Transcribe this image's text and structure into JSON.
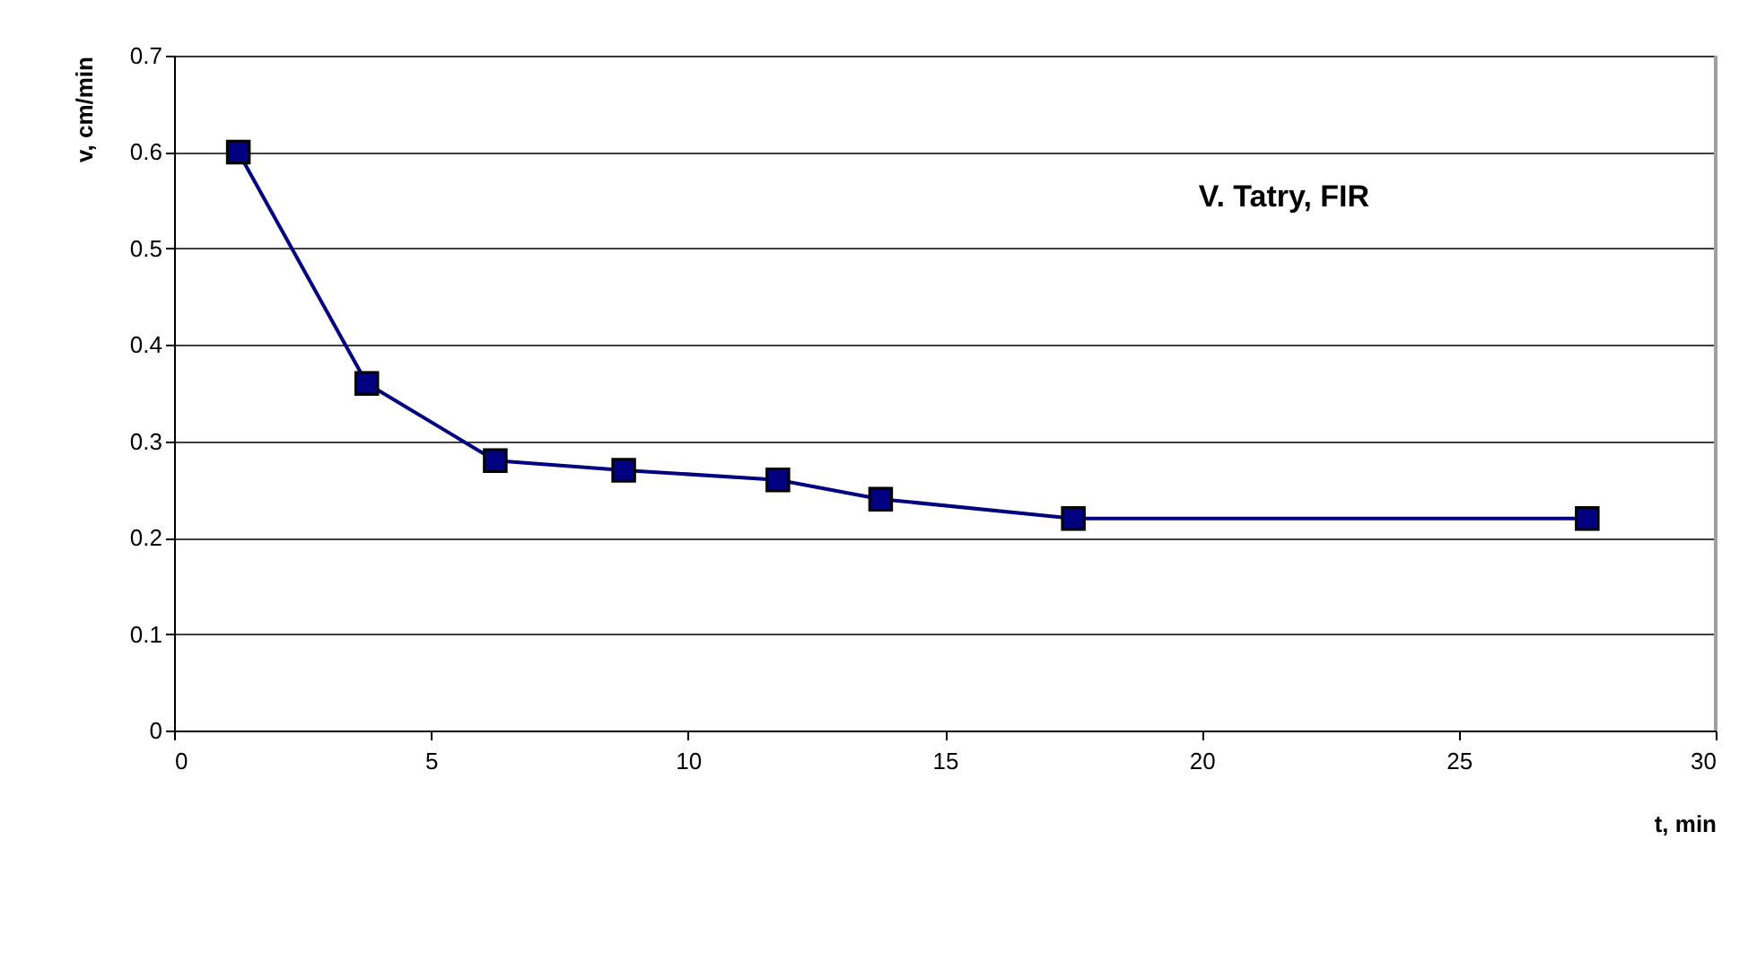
{
  "chart_data": {
    "type": "line",
    "xlabel": "t, min",
    "ylabel": "v, cm/min",
    "annotations": [
      "V. Tatry,  FIR"
    ],
    "x": [
      1.25,
      3.75,
      6.25,
      8.75,
      11.75,
      13.75,
      17.5,
      27.5
    ],
    "series": [
      {
        "color": "#000080",
        "values": [
          0.6,
          0.36,
          0.28,
          0.27,
          0.26,
          0.24,
          0.22,
          0.22
        ]
      }
    ],
    "xlim": [
      0,
      30
    ],
    "xticks": [
      0,
      5,
      10,
      15,
      20,
      25,
      30
    ],
    "ylim": [
      0,
      0.7
    ],
    "yticks": [
      0,
      0.1,
      0.2,
      0.3,
      0.4,
      0.5,
      0.6,
      0.7
    ],
    "grid": "y",
    "marker": "square",
    "line_style": "solid"
  }
}
